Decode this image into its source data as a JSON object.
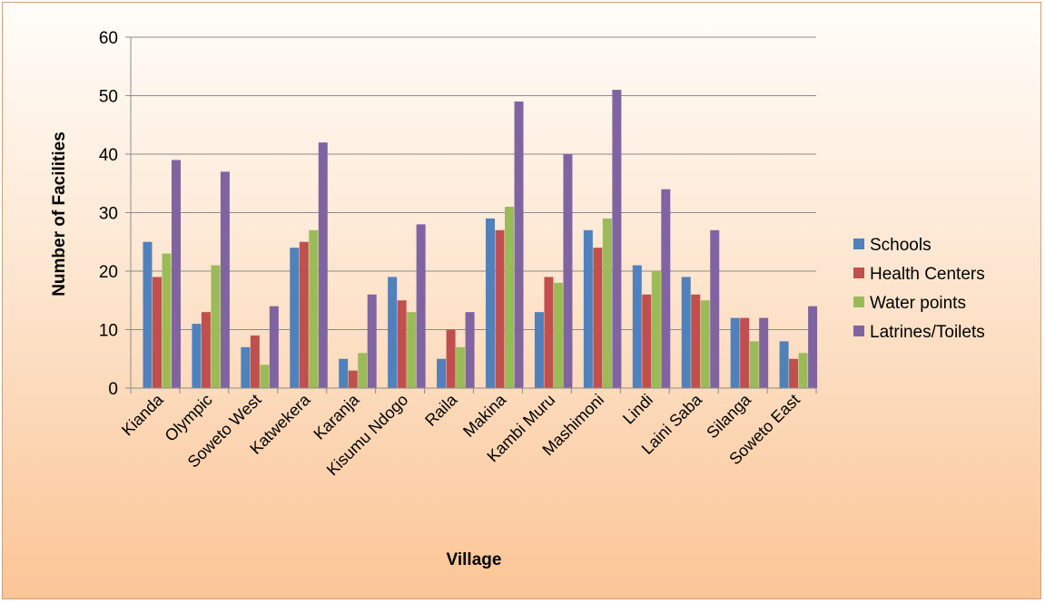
{
  "chart_data": {
    "type": "bar",
    "title": "",
    "xlabel": "Village",
    "ylabel": "Number of Facilities",
    "ylim": [
      0,
      60
    ],
    "yticks": [
      0,
      10,
      20,
      30,
      40,
      50,
      60
    ],
    "grid": true,
    "legend_position": "right",
    "categories": [
      "Kianda",
      "Olympic",
      "Soweto West",
      "Katwekera",
      "Karanja",
      "Kisumu Ndogo",
      "Raila",
      "Makina",
      "Kambi Muru",
      "Mashimoni",
      "Lindi",
      "Laini Saba",
      "Silanga",
      "Soweto East"
    ],
    "series": [
      {
        "name": "Schools",
        "color": "#4f81bd",
        "values": [
          25,
          11,
          7,
          24,
          5,
          19,
          5,
          29,
          13,
          27,
          21,
          19,
          12,
          8
        ]
      },
      {
        "name": "Health Centers",
        "color": "#c0504d",
        "values": [
          19,
          13,
          9,
          25,
          3,
          15,
          10,
          27,
          19,
          24,
          16,
          16,
          12,
          5
        ]
      },
      {
        "name": "Water points",
        "color": "#9bbb59",
        "values": [
          23,
          21,
          4,
          27,
          6,
          13,
          7,
          31,
          18,
          29,
          20,
          15,
          8,
          6
        ]
      },
      {
        "name": "Latrines/Toilets",
        "color": "#8064a2",
        "values": [
          39,
          37,
          14,
          42,
          16,
          28,
          13,
          49,
          40,
          51,
          34,
          27,
          12,
          14
        ]
      }
    ]
  }
}
